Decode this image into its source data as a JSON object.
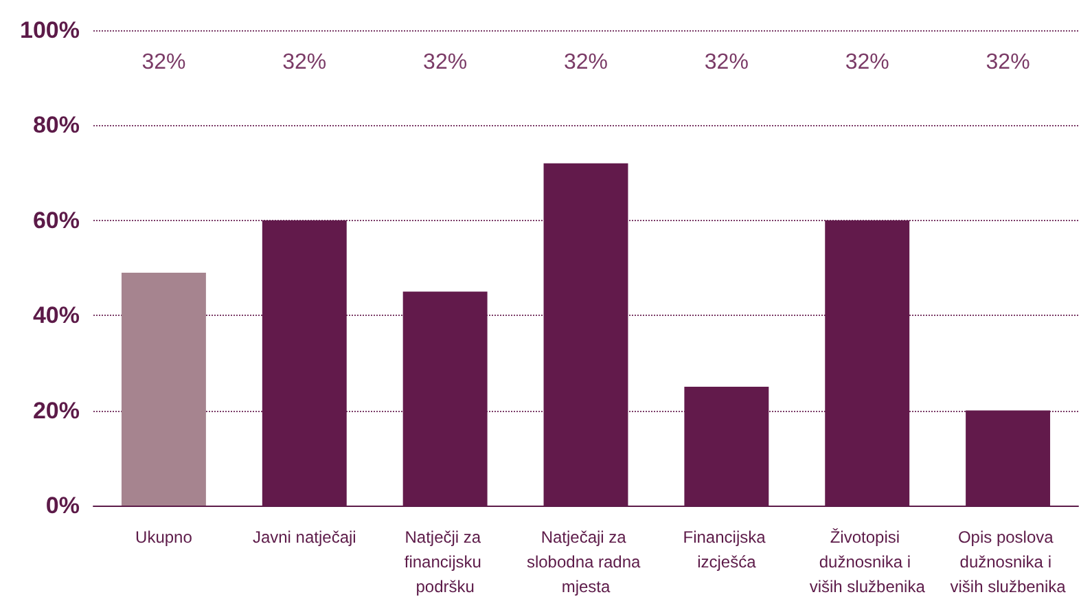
{
  "chart_data": {
    "type": "bar",
    "categories": [
      "Ukupno",
      "Javni natječaji",
      "Natječji za financijsku podršku",
      "Natječaji za slobodna radna mjesta",
      "Financijska izcješća",
      "Životopisi dužnosnika i viših službenika",
      "Opis poslova dužnosnika i viših službenika"
    ],
    "values": [
      49,
      60,
      45,
      72,
      25,
      60,
      20
    ],
    "colors": [
      "#a6848f",
      "#621a4b",
      "#621a4b",
      "#621a4b",
      "#621a4b",
      "#621a4b",
      "#621a4b"
    ],
    "ylim": [
      0,
      100
    ],
    "yticks": [
      {
        "value": 0,
        "label": "0%"
      },
      {
        "value": 20,
        "label": "20%"
      },
      {
        "value": 40,
        "label": "40%"
      },
      {
        "value": 60,
        "label": "60%"
      },
      {
        "value": 80,
        "label": "80%"
      },
      {
        "value": 100,
        "label": "100%"
      }
    ],
    "grid": "y",
    "annotations": [
      "32%",
      "32%",
      "32%",
      "32%",
      "32%",
      "32%",
      "32%"
    ]
  }
}
